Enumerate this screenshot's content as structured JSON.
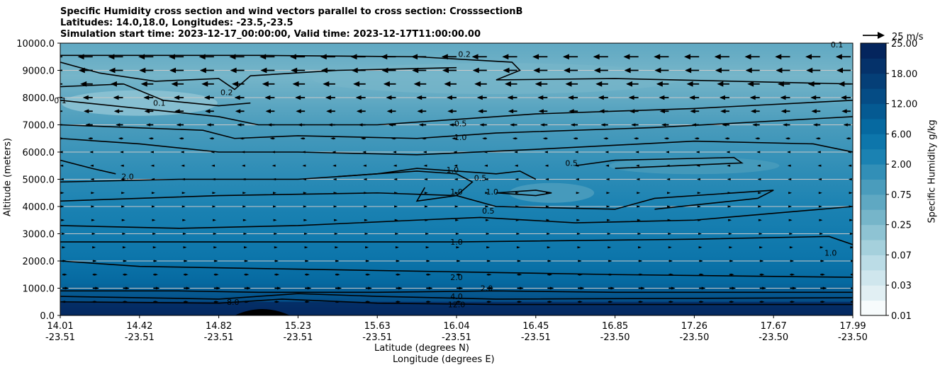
{
  "chart_data": {
    "type": "heatmap",
    "title": [
      "Specific Humidity cross section and wind vectors parallel to cross section: CrosssectionB",
      "Latitudes: 14.0,18.0, Longitudes: -23.5,-23.5",
      "Simulation start time: 2023-12-17_00:00:00, Valid time: 2023-12-17T11:00:00.00"
    ],
    "ylabel": "Altitude (meters)",
    "xlabel": [
      "Latitude (degrees N)",
      "Longitude (degrees E)"
    ],
    "ylim": [
      0,
      10000
    ],
    "yticks": [
      "0.0",
      "1000.0",
      "2000.0",
      "3000.0",
      "4000.0",
      "5000.0",
      "6000.0",
      "7000.0",
      "8000.0",
      "9000.0",
      "10000.0"
    ],
    "xticks": [
      {
        "lat": "14.01",
        "lon": "-23.51"
      },
      {
        "lat": "14.42",
        "lon": "-23.51"
      },
      {
        "lat": "14.82",
        "lon": "-23.51"
      },
      {
        "lat": "15.23",
        "lon": "-23.51"
      },
      {
        "lat": "15.63",
        "lon": "-23.51"
      },
      {
        "lat": "16.04",
        "lon": "-23.51"
      },
      {
        "lat": "16.45",
        "lon": "-23.51"
      },
      {
        "lat": "16.85",
        "lon": "-23.50"
      },
      {
        "lat": "17.26",
        "lon": "-23.50"
      },
      {
        "lat": "17.67",
        "lon": "-23.50"
      },
      {
        "lat": "17.99",
        "lon": "-23.50"
      }
    ],
    "grid": "horizontal",
    "colorbar": {
      "label": "Specific Humidity g/kg",
      "levels": [
        0.01,
        0.02,
        0.03,
        0.05,
        0.07,
        0.1,
        0.25,
        0.5,
        0.75,
        1.0,
        2.0,
        4.0,
        6.0,
        8.0,
        12.0,
        14.0,
        18.0,
        20.0,
        25.0
      ],
      "tick_labels": [
        "0.01",
        "0.03",
        "0.07",
        "0.25",
        "0.75",
        "2.00",
        "6.00",
        "12.00",
        "18.00",
        "25.00"
      ],
      "colors": [
        "#f7fbfc",
        "#e1eff3",
        "#cfe6ed",
        "#bbdce6",
        "#a5d0dc",
        "#8ec3d3",
        "#76b5c9",
        "#5fa8c2",
        "#4a9cbc",
        "#328fb7",
        "#1b82b2",
        "#0d76ab",
        "#0669a0",
        "#055a92",
        "#054c85",
        "#053f77",
        "#05326a",
        "#04255d"
      ]
    },
    "contour_labels": [
      {
        "x": 0.51,
        "y": 9600,
        "text": "0.2"
      },
      {
        "x": 0.21,
        "y": 8200,
        "text": "0.2"
      },
      {
        "x": 0.125,
        "y": 7800,
        "text": "0.1"
      },
      {
        "x": 0.0,
        "y": 7900,
        "text": "0.1"
      },
      {
        "x": 0.98,
        "y": 9950,
        "text": "0.1"
      },
      {
        "x": 0.505,
        "y": 7050,
        "text": "0.5"
      },
      {
        "x": 0.505,
        "y": 6550,
        "text": "1.0"
      },
      {
        "x": 0.495,
        "y": 5350,
        "text": "1.0"
      },
      {
        "x": 0.53,
        "y": 5050,
        "text": "0.5"
      },
      {
        "x": 0.5,
        "y": 4550,
        "text": "1.0"
      },
      {
        "x": 0.545,
        "y": 4550,
        "text": "1.0"
      },
      {
        "x": 0.54,
        "y": 3850,
        "text": "0.5"
      },
      {
        "x": 0.645,
        "y": 5600,
        "text": "0.5"
      },
      {
        "x": 0.085,
        "y": 5100,
        "text": "2.0"
      },
      {
        "x": 0.5,
        "y": 2700,
        "text": "1.0"
      },
      {
        "x": 0.972,
        "y": 2300,
        "text": "1.0"
      },
      {
        "x": 0.5,
        "y": 1400,
        "text": "2.0"
      },
      {
        "x": 0.538,
        "y": 1000,
        "text": "2.0"
      },
      {
        "x": 0.5,
        "y": 700,
        "text": "4.0"
      },
      {
        "x": 0.5,
        "y": 400,
        "text": "12.0"
      },
      {
        "x": 0.218,
        "y": 500,
        "text": "8.0"
      }
    ],
    "wind_vectors": {
      "reference_label": "25 m/s",
      "reference_speed": 25,
      "rows": [
        {
          "alt": 9500,
          "u": -16
        },
        {
          "alt": 9000,
          "u": -15
        },
        {
          "alt": 8500,
          "u": -13
        },
        {
          "alt": 8000,
          "u": -10
        },
        {
          "alt": 7500,
          "u": -9
        },
        {
          "alt": 7000,
          "u": -7
        },
        {
          "alt": 6500,
          "u": -4
        },
        {
          "alt": 6000,
          "u": -2
        },
        {
          "alt": 5500,
          "u": -1.5
        },
        {
          "alt": 5000,
          "u": -1
        },
        {
          "alt": 4500,
          "u": 0.5
        },
        {
          "alt": 4000,
          "u": 0.5
        },
        {
          "alt": 3500,
          "u": 1
        },
        {
          "alt": 3000,
          "u": 1.5
        },
        {
          "alt": 2500,
          "u": 2
        },
        {
          "alt": 2000,
          "u": 3
        },
        {
          "alt": 1500,
          "u": 4
        },
        {
          "alt": 1000,
          "u": 6
        },
        {
          "alt": 500,
          "u": 4
        }
      ]
    }
  }
}
